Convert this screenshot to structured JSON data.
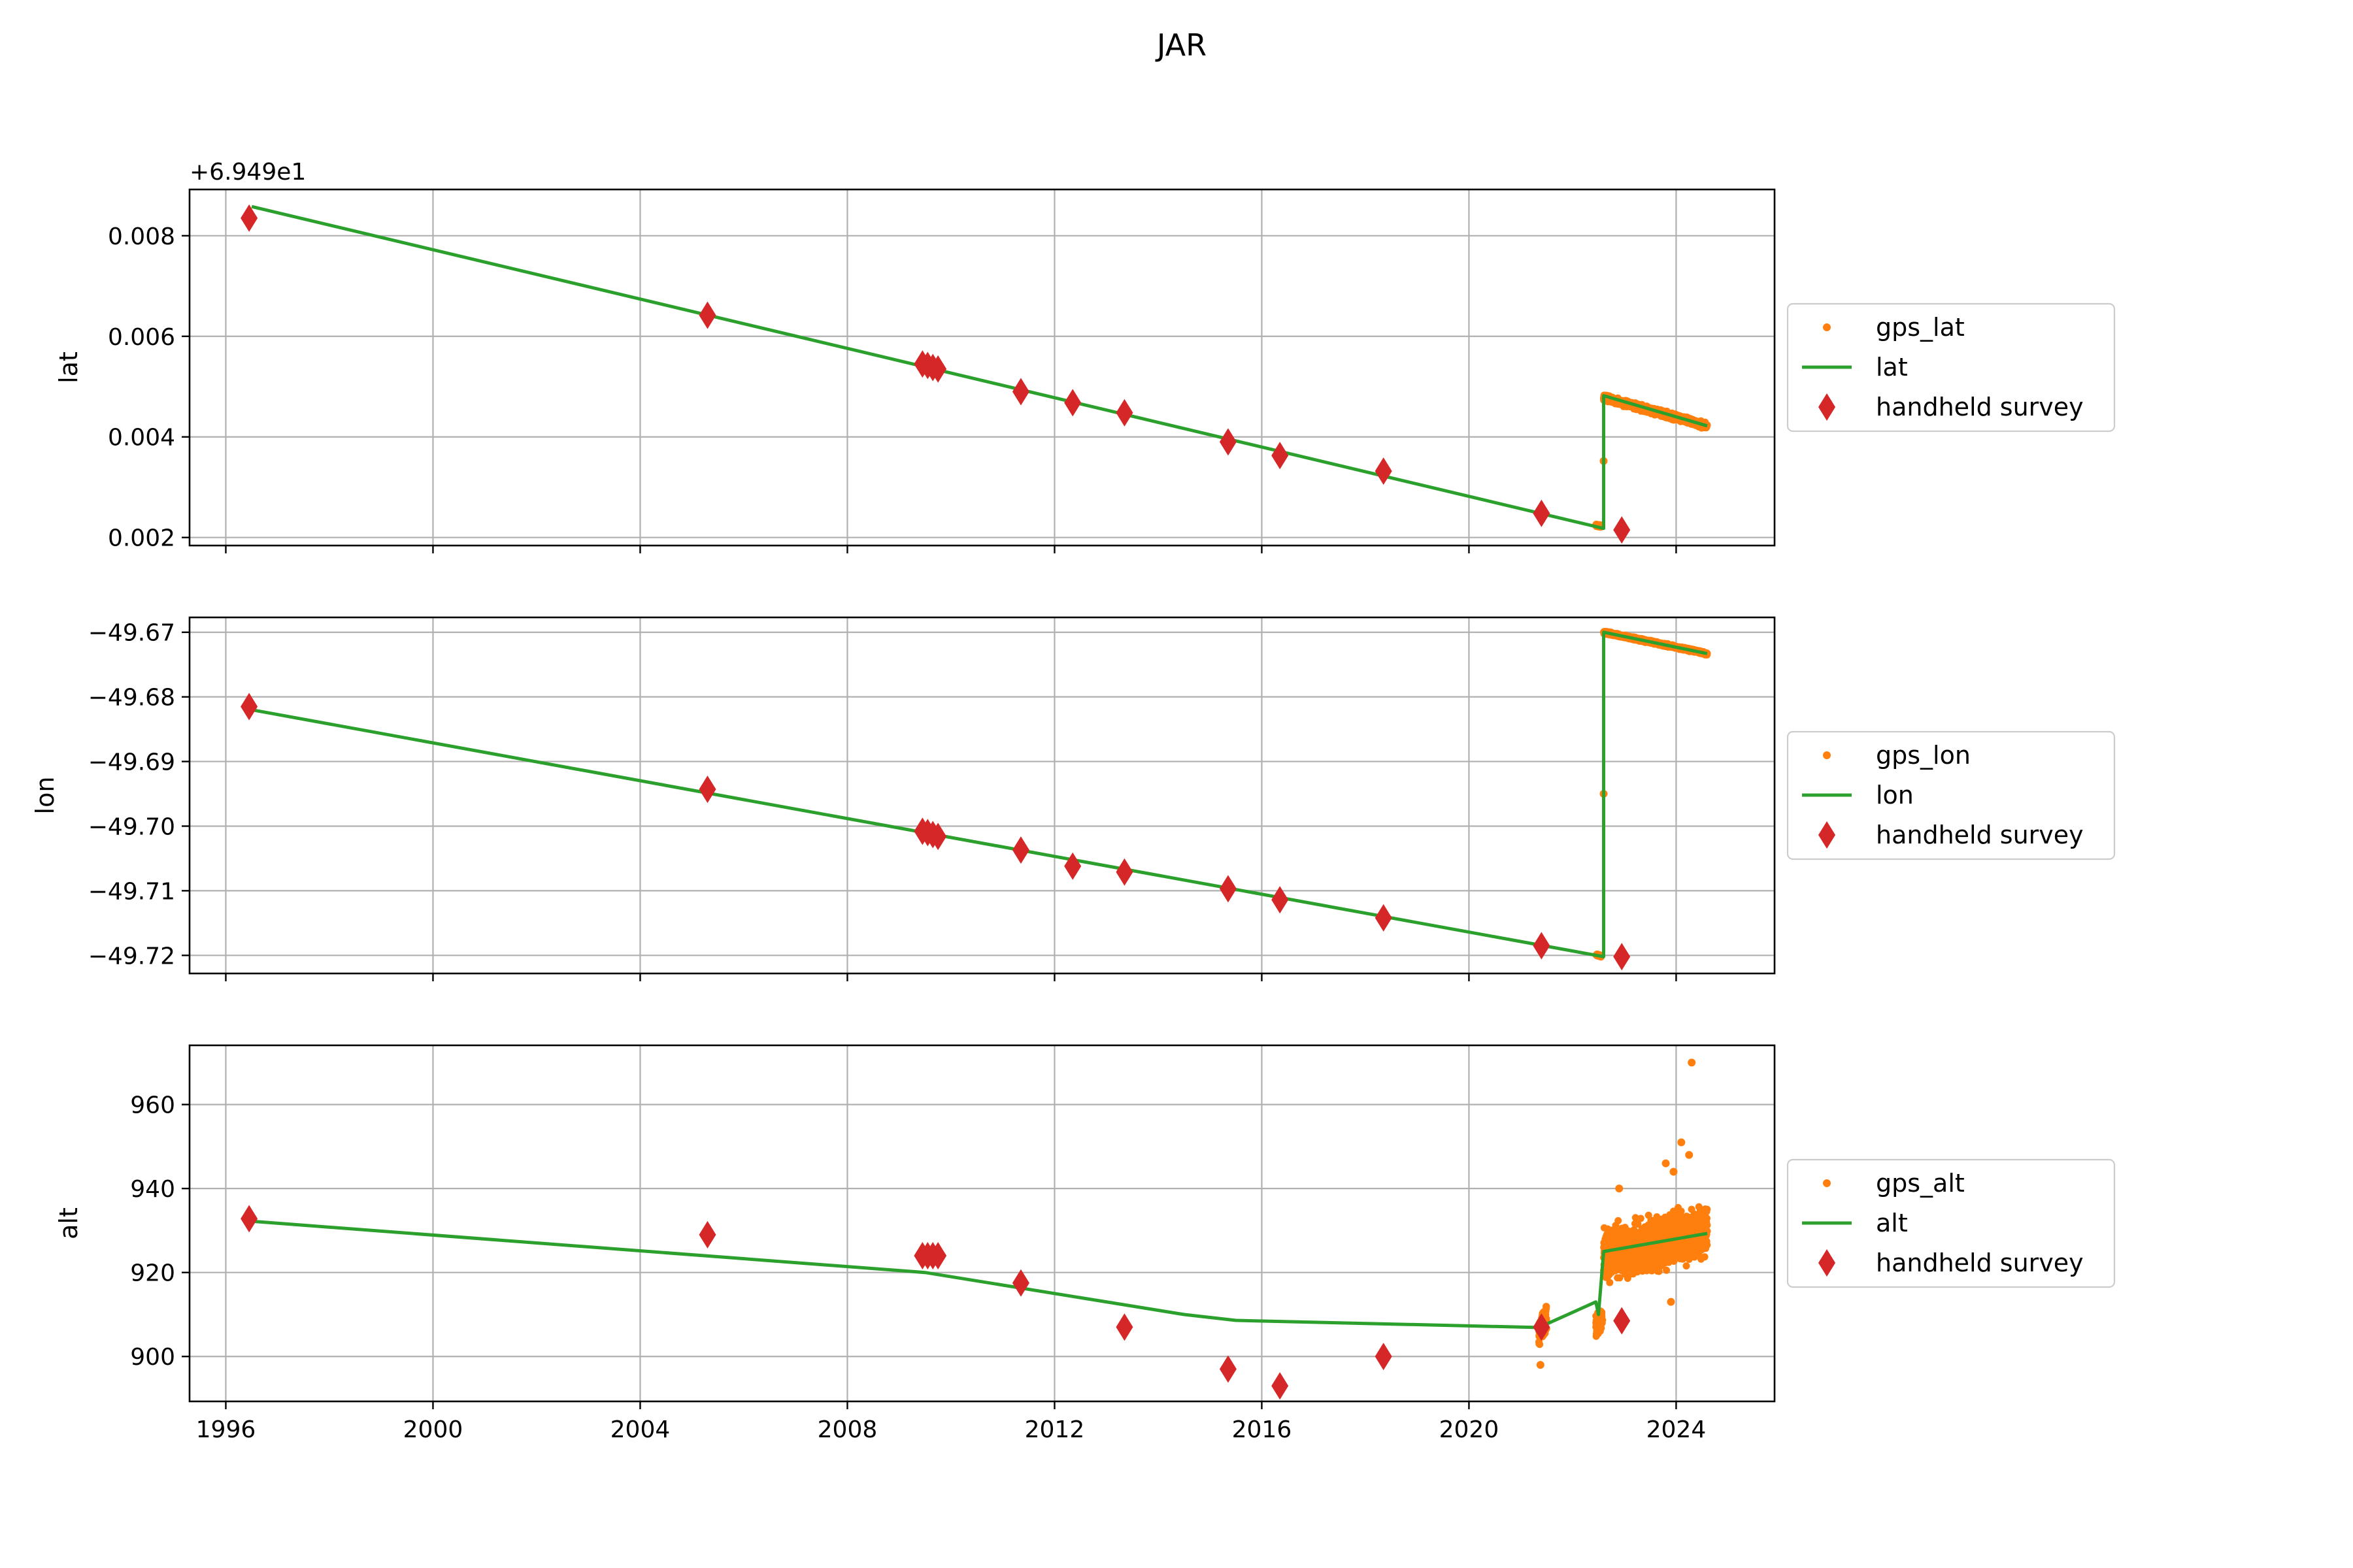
{
  "title": "JAR",
  "colors": {
    "gps": "#ff7f0e",
    "model": "#2ca02c",
    "survey": "#d62728",
    "grid": "#b0b0b0"
  },
  "chart_data": [
    {
      "type": "line",
      "ylabel": "lat",
      "offset_text": "+6.949e1",
      "offset": 69.49,
      "xlim": [
        1995.3,
        2025.9
      ],
      "ylim": [
        0.00184,
        0.00892
      ],
      "xticks": [
        {
          "value": 1996,
          "label": "1996"
        },
        {
          "value": 2000,
          "label": "2000"
        },
        {
          "value": 2004,
          "label": "2004"
        },
        {
          "value": 2008,
          "label": "2008"
        },
        {
          "value": 2012,
          "label": "2012"
        },
        {
          "value": 2016,
          "label": "2016"
        },
        {
          "value": 2020,
          "label": "2020"
        },
        {
          "value": 2024,
          "label": "2024"
        }
      ],
      "show_xtick_labels": false,
      "yticks": [
        {
          "value": 0.002,
          "label": "0.002"
        },
        {
          "value": 0.004,
          "label": "0.004"
        },
        {
          "value": 0.006,
          "label": "0.006"
        },
        {
          "value": 0.008,
          "label": "0.008"
        }
      ],
      "grid": true,
      "legend_position": "right",
      "legend": [
        "gps_lat",
        "lat",
        "handheld survey"
      ],
      "gps_segments": [
        {
          "x0": 2022.45,
          "x1": 2022.55,
          "y0": 0.00225,
          "y1": 0.00222,
          "spread": 3e-05
        },
        {
          "x0": 2022.6,
          "x1": 2024.6,
          "y0": 0.00478,
          "y1": 0.00422,
          "spread": 8e-05
        }
      ],
      "gps_outliers": [
        {
          "x": 2022.6,
          "y": 0.00352
        }
      ],
      "model": {
        "x": [
          1996.5,
          2022.6,
          2022.6,
          2024.6
        ],
        "y": [
          0.00858,
          0.00218,
          0.00482,
          0.00422
        ]
      },
      "survey": [
        {
          "x": 1996.45,
          "y": 0.00835
        },
        {
          "x": 2005.3,
          "y": 0.00642
        },
        {
          "x": 2009.45,
          "y": 0.00545
        },
        {
          "x": 2009.55,
          "y": 0.00542
        },
        {
          "x": 2009.65,
          "y": 0.00538
        },
        {
          "x": 2009.75,
          "y": 0.00535
        },
        {
          "x": 2011.35,
          "y": 0.0049
        },
        {
          "x": 2012.35,
          "y": 0.00468
        },
        {
          "x": 2013.35,
          "y": 0.00448
        },
        {
          "x": 2015.35,
          "y": 0.0039
        },
        {
          "x": 2016.35,
          "y": 0.00363
        },
        {
          "x": 2018.35,
          "y": 0.00332
        },
        {
          "x": 2021.4,
          "y": 0.00248
        },
        {
          "x": 2022.95,
          "y": 0.00215
        }
      ]
    },
    {
      "type": "line",
      "ylabel": "lon",
      "xlim": [
        1995.3,
        2025.9
      ],
      "ylim": [
        -49.7228,
        -49.6677
      ],
      "xticks": [
        {
          "value": 1996,
          "label": "1996"
        },
        {
          "value": 2000,
          "label": "2000"
        },
        {
          "value": 2004,
          "label": "2004"
        },
        {
          "value": 2008,
          "label": "2008"
        },
        {
          "value": 2012,
          "label": "2012"
        },
        {
          "value": 2016,
          "label": "2016"
        },
        {
          "value": 2020,
          "label": "2020"
        },
        {
          "value": 2024,
          "label": "2024"
        }
      ],
      "show_xtick_labels": false,
      "yticks": [
        {
          "value": -49.72,
          "label": "−49.72"
        },
        {
          "value": -49.71,
          "label": "−49.71"
        },
        {
          "value": -49.7,
          "label": "−49.70"
        },
        {
          "value": -49.69,
          "label": "−49.69"
        },
        {
          "value": -49.68,
          "label": "−49.68"
        },
        {
          "value": -49.67,
          "label": "−49.67"
        }
      ],
      "grid": true,
      "legend_position": "right",
      "legend": [
        "gps_lon",
        "lon",
        "handheld survey"
      ],
      "gps_segments": [
        {
          "x0": 2022.45,
          "x1": 2022.55,
          "y0": -49.7199,
          "y1": -49.7201,
          "spread": 0.0002
        },
        {
          "x0": 2022.6,
          "x1": 2024.6,
          "y0": -49.67,
          "y1": -49.6733,
          "spread": 0.0003
        }
      ],
      "gps_outliers": [
        {
          "x": 2022.6,
          "y": -49.695
        }
      ],
      "model": {
        "x": [
          1996.5,
          2022.6,
          2022.6,
          2024.6
        ],
        "y": [
          -49.682,
          -49.7202,
          -49.67,
          -49.6733
        ]
      },
      "survey": [
        {
          "x": 1996.45,
          "y": -49.6815
        },
        {
          "x": 2005.3,
          "y": -49.6943
        },
        {
          "x": 2009.45,
          "y": -49.7008
        },
        {
          "x": 2009.55,
          "y": -49.701
        },
        {
          "x": 2009.65,
          "y": -49.7013
        },
        {
          "x": 2009.75,
          "y": -49.7016
        },
        {
          "x": 2011.35,
          "y": -49.7037
        },
        {
          "x": 2012.35,
          "y": -49.7062
        },
        {
          "x": 2013.35,
          "y": -49.7071
        },
        {
          "x": 2015.35,
          "y": -49.7097
        },
        {
          "x": 2016.35,
          "y": -49.7114
        },
        {
          "x": 2018.35,
          "y": -49.7142
        },
        {
          "x": 2021.4,
          "y": -49.7185
        },
        {
          "x": 2022.95,
          "y": -49.7202
        }
      ]
    },
    {
      "type": "line",
      "ylabel": "alt",
      "xlim": [
        1995.3,
        2025.9
      ],
      "ylim": [
        889.3,
        974.1
      ],
      "xticks": [
        {
          "value": 1996,
          "label": "1996"
        },
        {
          "value": 2000,
          "label": "2000"
        },
        {
          "value": 2004,
          "label": "2004"
        },
        {
          "value": 2008,
          "label": "2008"
        },
        {
          "value": 2012,
          "label": "2012"
        },
        {
          "value": 2016,
          "label": "2016"
        },
        {
          "value": 2020,
          "label": "2020"
        },
        {
          "value": 2024,
          "label": "2024"
        }
      ],
      "show_xtick_labels": true,
      "yticks": [
        {
          "value": 900,
          "label": "900"
        },
        {
          "value": 920,
          "label": "920"
        },
        {
          "value": 940,
          "label": "940"
        },
        {
          "value": 960,
          "label": "960"
        }
      ],
      "grid": true,
      "legend_position": "right",
      "legend": [
        "gps_alt",
        "alt",
        "handheld survey"
      ],
      "gps_segments": [
        {
          "x0": 2021.35,
          "x1": 2021.5,
          "y0": 905,
          "y1": 910,
          "spread": 5
        },
        {
          "x0": 2022.45,
          "x1": 2022.58,
          "y0": 907,
          "y1": 910,
          "spread": 4
        },
        {
          "x0": 2022.6,
          "x1": 2024.6,
          "y0": 924,
          "y1": 930,
          "spread": 8
        }
      ],
      "gps_outliers": [
        {
          "x": 2024.3,
          "y": 970
        },
        {
          "x": 2024.1,
          "y": 951
        },
        {
          "x": 2023.8,
          "y": 946
        },
        {
          "x": 2024.25,
          "y": 948
        },
        {
          "x": 2021.38,
          "y": 898
        },
        {
          "x": 2023.9,
          "y": 913
        },
        {
          "x": 2023.95,
          "y": 944
        },
        {
          "x": 2022.9,
          "y": 940
        }
      ],
      "model": {
        "x": [
          1996.5,
          2009.5,
          2011.0,
          2014.5,
          2015.5,
          2021.35,
          2022.45,
          2022.5,
          2022.6,
          2024.6
        ],
        "y": [
          932.2,
          920.0,
          917.0,
          910.0,
          908.6,
          906.9,
          913.0,
          910.0,
          925.0,
          929.3
        ]
      },
      "survey": [
        {
          "x": 1996.45,
          "y": 932.8
        },
        {
          "x": 2005.3,
          "y": 929.0
        },
        {
          "x": 2009.45,
          "y": 924.0
        },
        {
          "x": 2009.55,
          "y": 924.0
        },
        {
          "x": 2009.65,
          "y": 924.0
        },
        {
          "x": 2009.75,
          "y": 924.0
        },
        {
          "x": 2011.35,
          "y": 917.5
        },
        {
          "x": 2013.35,
          "y": 907.0
        },
        {
          "x": 2015.35,
          "y": 897.0
        },
        {
          "x": 2016.35,
          "y": 893.0
        },
        {
          "x": 2018.35,
          "y": 900.0
        },
        {
          "x": 2021.4,
          "y": 907.0
        },
        {
          "x": 2022.95,
          "y": 908.5
        }
      ]
    }
  ]
}
